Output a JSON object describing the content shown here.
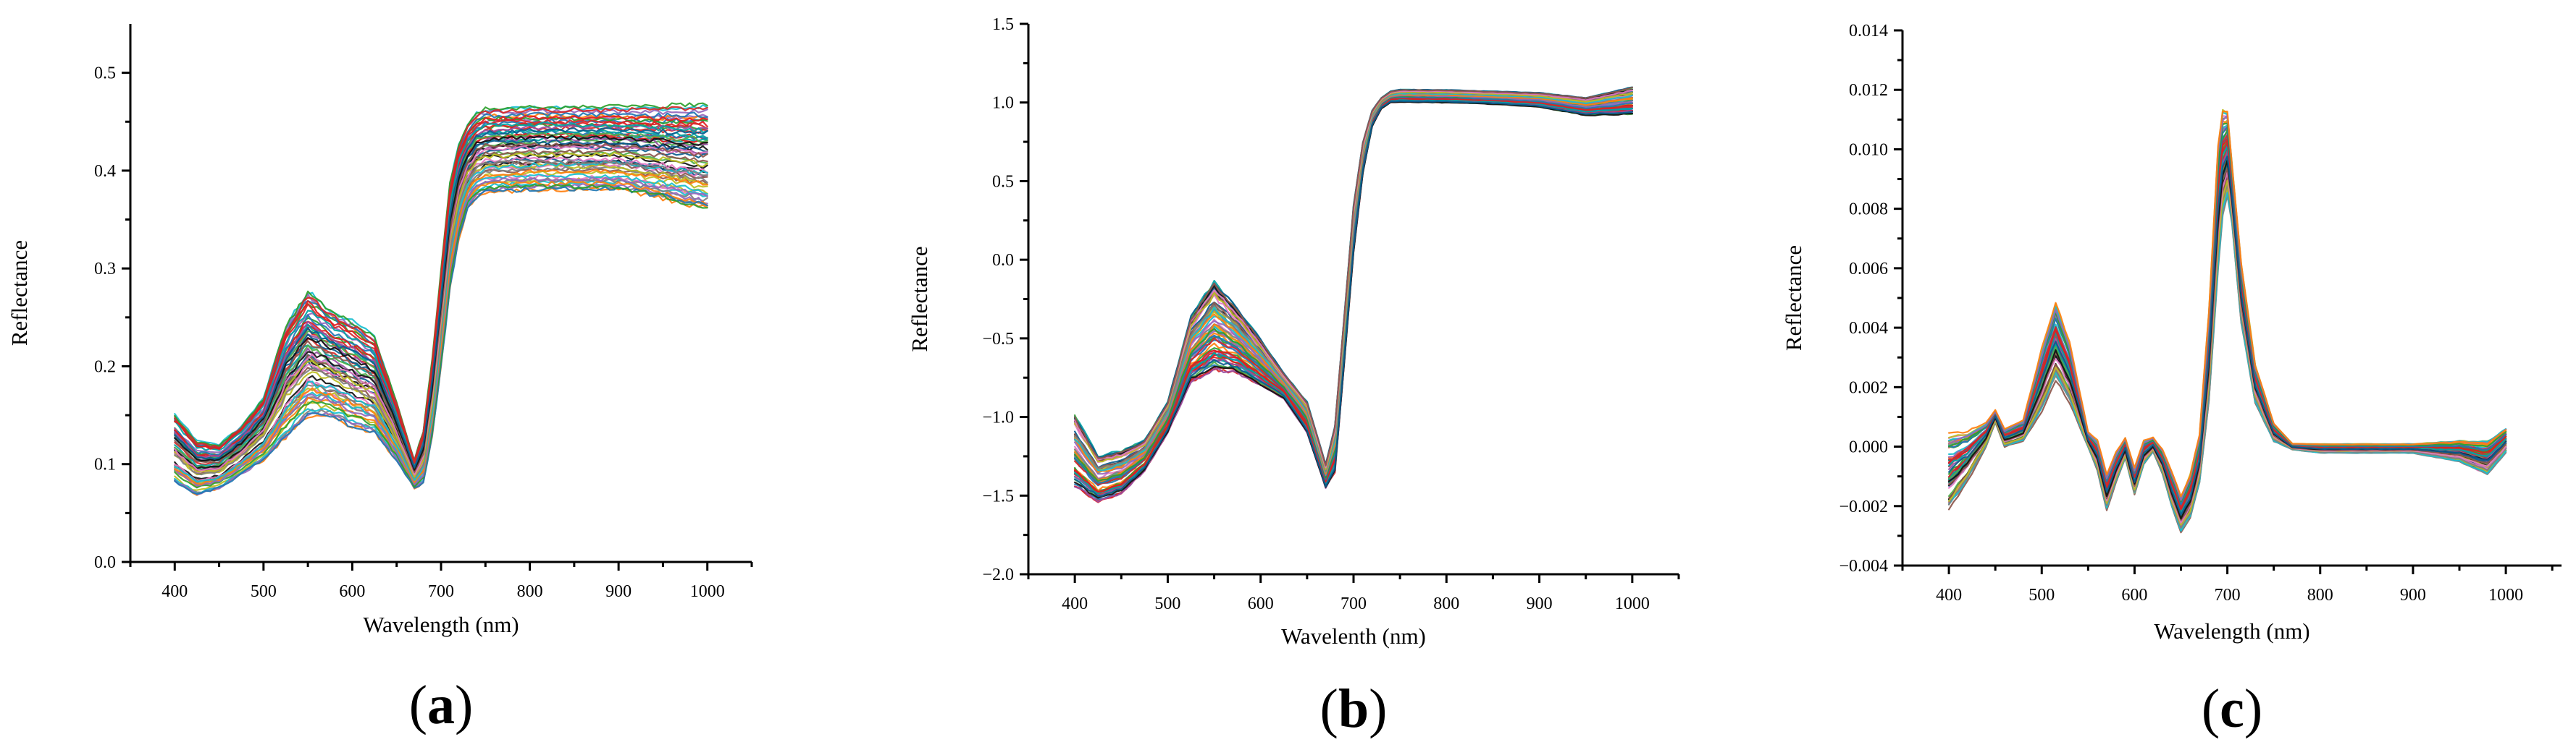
{
  "palette": [
    "#d62728",
    "#1f77b4",
    "#2ca02c",
    "#9467bd",
    "#ff7f0e",
    "#17becf",
    "#7f7f7f",
    "#bcbd22",
    "#e377c2",
    "#8c564b",
    "#111111",
    "#0a5d8f",
    "#4daf4a",
    "#984ea3",
    "#00a3a3",
    "#e41a1c"
  ],
  "chart_data": [
    {
      "id": "a",
      "type": "line",
      "panel_label": {
        "open": "(",
        "letter": "a",
        "close": ")"
      },
      "xlabel": "Wavelength (nm)",
      "ylabel": "Reflectance",
      "xlim": [
        350,
        1050
      ],
      "ylim": [
        0.0,
        0.55
      ],
      "xticks": [
        400,
        500,
        600,
        700,
        800,
        900,
        1000
      ],
      "xtick_labels": [
        "400",
        "500",
        "600",
        "700",
        "800",
        "900",
        "1000"
      ],
      "yticks": [
        0.0,
        0.1,
        0.2,
        0.3,
        0.4,
        0.5
      ],
      "ytick_labels": [
        "0.0",
        "0.1",
        "0.2",
        "0.3",
        "0.4",
        "0.5"
      ],
      "series_count": 60,
      "reference_series": {
        "x": [
          400,
          425,
          450,
          475,
          500,
          525,
          550,
          575,
          600,
          625,
          650,
          670,
          680,
          690,
          700,
          710,
          720,
          730,
          740,
          750,
          800,
          850,
          900,
          950,
          1000
        ],
        "y": [
          0.11,
          0.095,
          0.1,
          0.115,
          0.135,
          0.18,
          0.215,
          0.205,
          0.19,
          0.175,
          0.13,
          0.09,
          0.11,
          0.165,
          0.25,
          0.33,
          0.38,
          0.405,
          0.415,
          0.418,
          0.42,
          0.42,
          0.42,
          0.412,
          0.41
        ]
      },
      "envelope": {
        "x": [
          400,
          425,
          450,
          475,
          500,
          525,
          550,
          575,
          600,
          625,
          650,
          670,
          680,
          690,
          700,
          710,
          720,
          730,
          740,
          750,
          800,
          850,
          900,
          950,
          1000
        ],
        "low": [
          0.085,
          0.07,
          0.075,
          0.09,
          0.105,
          0.13,
          0.15,
          0.15,
          0.14,
          0.135,
          0.105,
          0.075,
          0.08,
          0.13,
          0.2,
          0.28,
          0.33,
          0.36,
          0.372,
          0.378,
          0.38,
          0.38,
          0.38,
          0.372,
          0.36
        ],
        "high": [
          0.155,
          0.125,
          0.12,
          0.14,
          0.17,
          0.245,
          0.28,
          0.26,
          0.25,
          0.235,
          0.165,
          0.105,
          0.135,
          0.21,
          0.3,
          0.39,
          0.43,
          0.45,
          0.462,
          0.466,
          0.468,
          0.468,
          0.468,
          0.47,
          0.472
        ]
      }
    },
    {
      "id": "b",
      "type": "line",
      "panel_label": {
        "open": "(",
        "letter": "b",
        "close": ")"
      },
      "xlabel": "Wavelenth (nm)",
      "ylabel": "Reflectance",
      "xlim": [
        350,
        1050
      ],
      "ylim": [
        -2.0,
        1.5
      ],
      "xticks": [
        400,
        500,
        600,
        700,
        800,
        900,
        1000
      ],
      "xtick_labels": [
        "400",
        "500",
        "600",
        "700",
        "800",
        "900",
        "1000"
      ],
      "yticks": [
        -2.0,
        -1.5,
        -1.0,
        -0.5,
        0.0,
        0.5,
        1.0,
        1.5
      ],
      "ytick_labels": [
        "−2.0",
        "−1.5",
        "−1.0",
        "−0.5",
        "0.0",
        "0.5",
        "1.0",
        "1.5"
      ],
      "series_count": 60,
      "reference_series": {
        "x": [
          400,
          425,
          450,
          475,
          500,
          525,
          550,
          575,
          600,
          625,
          650,
          670,
          680,
          690,
          700,
          710,
          720,
          730,
          740,
          750,
          800,
          850,
          900,
          950,
          1000
        ],
        "y": [
          -1.25,
          -1.35,
          -1.3,
          -1.22,
          -1.0,
          -0.55,
          -0.4,
          -0.5,
          -0.65,
          -0.8,
          -1.0,
          -1.38,
          -1.2,
          -0.5,
          0.2,
          0.65,
          0.9,
          1.0,
          1.04,
          1.05,
          1.04,
          1.03,
          1.02,
          0.97,
          1.0
        ]
      },
      "envelope": {
        "x": [
          400,
          425,
          450,
          475,
          500,
          525,
          550,
          575,
          600,
          625,
          650,
          670,
          680,
          690,
          700,
          710,
          720,
          730,
          740,
          750,
          800,
          850,
          900,
          950,
          1000
        ],
        "low": [
          -1.42,
          -1.55,
          -1.5,
          -1.35,
          -1.1,
          -0.78,
          -0.7,
          -0.72,
          -0.8,
          -0.88,
          -1.1,
          -1.45,
          -1.35,
          -0.65,
          0.05,
          0.55,
          0.85,
          0.96,
          1.0,
          1.0,
          1.0,
          0.99,
          0.97,
          0.92,
          0.93
        ],
        "high": [
          -0.95,
          -1.25,
          -1.22,
          -1.15,
          -0.9,
          -0.35,
          -0.12,
          -0.3,
          -0.5,
          -0.72,
          -0.9,
          -1.3,
          -1.05,
          -0.35,
          0.35,
          0.75,
          0.95,
          1.03,
          1.07,
          1.08,
          1.08,
          1.07,
          1.06,
          1.03,
          1.1
        ]
      }
    },
    {
      "id": "c",
      "type": "line",
      "panel_label": {
        "open": "(",
        "letter": "c",
        "close": ")"
      },
      "xlabel": "Wavelength (nm)",
      "ylabel": "Reflectance",
      "xlim": [
        350,
        1060
      ],
      "ylim": [
        -0.004,
        0.014
      ],
      "xticks": [
        400,
        500,
        600,
        700,
        800,
        900,
        1000
      ],
      "xtick_labels": [
        "400",
        "500",
        "600",
        "700",
        "800",
        "900",
        "1000"
      ],
      "yticks": [
        -0.004,
        -0.002,
        0.0,
        0.002,
        0.004,
        0.006,
        0.008,
        0.01,
        0.012,
        0.014
      ],
      "ytick_labels": [
        "−0.004",
        "−0.002",
        "0.000",
        "0.002",
        "0.004",
        "0.006",
        "0.008",
        "0.010",
        "0.012",
        "0.014"
      ],
      "series_count": 60,
      "reference_series": {
        "x": [
          400,
          420,
          440,
          450,
          460,
          480,
          500,
          515,
          530,
          550,
          560,
          570,
          580,
          590,
          600,
          610,
          620,
          630,
          640,
          650,
          660,
          670,
          680,
          690,
          698,
          705,
          715,
          730,
          750,
          770,
          800,
          900,
          950,
          980,
          1000
        ],
        "y": [
          -0.001,
          -0.0003,
          0.0004,
          0.0011,
          0.0003,
          0.0005,
          0.0022,
          0.0038,
          0.0025,
          0.0002,
          -0.0003,
          -0.0016,
          -0.0007,
          0.0,
          -0.0012,
          -0.0002,
          0.0001,
          -0.0005,
          -0.0015,
          -0.0025,
          -0.0018,
          -0.0005,
          0.003,
          0.008,
          0.0105,
          0.0085,
          0.005,
          0.002,
          0.0004,
          0.0,
          -0.0001,
          -0.0001,
          -0.0002,
          -0.0005,
          0.0002
        ]
      },
      "envelope": {
        "x": [
          400,
          420,
          440,
          450,
          460,
          480,
          500,
          515,
          530,
          550,
          560,
          570,
          580,
          590,
          600,
          610,
          620,
          630,
          640,
          650,
          660,
          670,
          680,
          690,
          698,
          705,
          715,
          730,
          750,
          770,
          800,
          900,
          950,
          980,
          1000
        ],
        "low": [
          -0.0021,
          -0.0012,
          0.0,
          0.0008,
          0.0,
          0.0002,
          0.0012,
          0.0022,
          0.0015,
          0.0,
          -0.0008,
          -0.0021,
          -0.0012,
          -0.0004,
          -0.0016,
          -0.0006,
          -0.0002,
          -0.0009,
          -0.002,
          -0.0028,
          -0.0024,
          -0.0012,
          0.0015,
          0.006,
          0.0088,
          0.0075,
          0.0042,
          0.0015,
          0.0002,
          -0.0001,
          -0.0002,
          -0.0002,
          -0.0005,
          -0.0009,
          -0.0002
        ],
        "high": [
          0.0005,
          0.0005,
          0.0008,
          0.0012,
          0.0006,
          0.0009,
          0.0033,
          0.0048,
          0.0035,
          0.0005,
          0.0002,
          -0.0009,
          -0.0002,
          0.0003,
          -0.0007,
          0.0002,
          0.0003,
          -0.0001,
          -0.0008,
          -0.0016,
          -0.0009,
          0.0004,
          0.0045,
          0.0102,
          0.012,
          0.0095,
          0.0062,
          0.0028,
          0.0008,
          0.0001,
          0.0001,
          0.0001,
          0.0002,
          0.0002,
          0.0006
        ]
      }
    }
  ]
}
